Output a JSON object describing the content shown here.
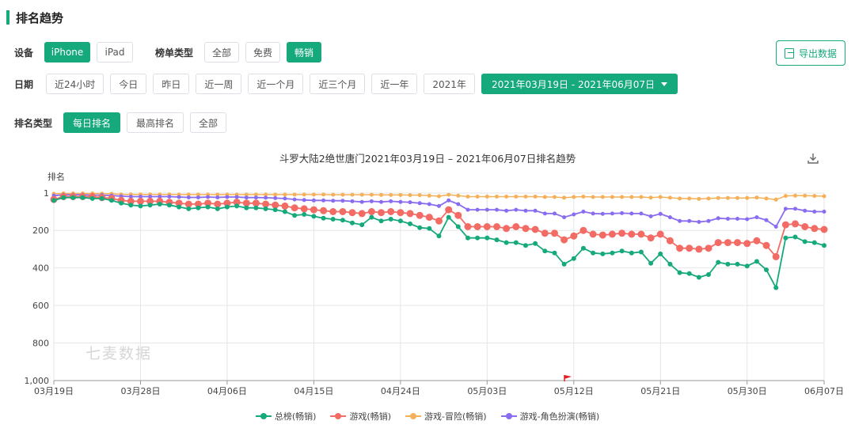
{
  "header": {
    "title": "排名趋势"
  },
  "filters": {
    "device": {
      "label": "设备",
      "options": [
        "iPhone",
        "iPad"
      ],
      "active": 0
    },
    "list_type": {
      "label": "榜单类型",
      "options": [
        "全部",
        "免费",
        "畅销"
      ],
      "active": 2
    },
    "date": {
      "label": "日期",
      "options": [
        "近24小时",
        "今日",
        "昨日",
        "近一周",
        "近一个月",
        "近三个月",
        "近一年",
        "2021年"
      ],
      "range": "2021年03月19日 - 2021年06月07日"
    },
    "rank_type": {
      "label": "排名类型",
      "options": [
        "每日排名",
        "最高排名",
        "全部"
      ],
      "active": 0
    }
  },
  "export_label": "导出数据",
  "watermark": "七麦数据",
  "colors": {
    "accent": "#16a97c",
    "overall": "#16a97c",
    "games": "#f26b64",
    "adventure": "#f5b05a",
    "rpg": "#8a6cf0"
  },
  "chart_data": {
    "type": "line",
    "title": "斗罗大陆2绝世唐门2021年03月19日 – 2021年06月07日排名趋势",
    "ylabel": "排名",
    "y_inverted": true,
    "ylim": [
      1,
      1000
    ],
    "y_ticks": [
      "1",
      "200",
      "400",
      "600",
      "800",
      "1,000"
    ],
    "y_tick_values": [
      1,
      200,
      400,
      600,
      800,
      1000
    ],
    "x_tick_labels": [
      "03月19日",
      "03月28日",
      "04月06日",
      "04月15日",
      "04月24日",
      "05月03日",
      "05月12日",
      "05月21日",
      "05月30日",
      "06月07日"
    ],
    "x_start": "2021-03-19",
    "x_end": "2021-06-07",
    "grid": true,
    "legend_position": "bottom",
    "series": [
      {
        "name": "总榜(畅销)",
        "color": "#16a97c",
        "values": [
          40,
          25,
          25,
          25,
          30,
          30,
          40,
          55,
          65,
          70,
          65,
          60,
          65,
          75,
          85,
          80,
          75,
          85,
          75,
          70,
          80,
          80,
          85,
          90,
          100,
          120,
          115,
          125,
          135,
          140,
          145,
          160,
          170,
          130,
          150,
          140,
          150,
          165,
          185,
          190,
          230,
          130,
          180,
          240,
          240,
          240,
          250,
          265,
          265,
          280,
          270,
          310,
          320,
          380,
          350,
          295,
          320,
          325,
          320,
          310,
          320,
          315,
          375,
          325,
          380,
          425,
          430,
          450,
          435,
          370,
          380,
          380,
          390,
          365,
          410,
          505,
          240,
          235,
          260,
          265,
          280
        ]
      },
      {
        "name": "游戏(畅销)",
        "color": "#f26b64",
        "values": [
          35,
          20,
          20,
          20,
          20,
          25,
          30,
          40,
          45,
          45,
          45,
          45,
          50,
          55,
          60,
          60,
          55,
          60,
          55,
          50,
          55,
          55,
          60,
          65,
          70,
          80,
          85,
          90,
          95,
          100,
          100,
          105,
          110,
          100,
          105,
          100,
          105,
          110,
          120,
          130,
          150,
          90,
          120,
          180,
          180,
          180,
          180,
          190,
          180,
          190,
          195,
          215,
          215,
          250,
          230,
          200,
          220,
          225,
          220,
          215,
          220,
          220,
          240,
          220,
          255,
          295,
          295,
          300,
          295,
          265,
          265,
          265,
          270,
          255,
          280,
          340,
          170,
          165,
          180,
          190,
          195
        ]
      },
      {
        "name": "游戏-冒险(畅销)",
        "color": "#f5b05a",
        "values": [
          5,
          3,
          3,
          3,
          3,
          4,
          5,
          8,
          8,
          8,
          8,
          8,
          8,
          9,
          9,
          9,
          9,
          9,
          9,
          9,
          9,
          9,
          9,
          9,
          9,
          9,
          9,
          9,
          9,
          10,
          10,
          10,
          10,
          10,
          11,
          11,
          11,
          12,
          12,
          15,
          18,
          10,
          15,
          20,
          20,
          20,
          20,
          20,
          20,
          20,
          20,
          22,
          22,
          26,
          22,
          20,
          22,
          22,
          22,
          22,
          22,
          22,
          25,
          22,
          26,
          30,
          30,
          32,
          30,
          27,
          27,
          27,
          27,
          25,
          30,
          36,
          16,
          15,
          15,
          16,
          18
        ]
      },
      {
        "name": "游戏-角色扮演(畅销)",
        "color": "#8a6cf0",
        "values": [
          15,
          10,
          10,
          10,
          12,
          12,
          14,
          18,
          20,
          20,
          20,
          20,
          20,
          22,
          24,
          24,
          22,
          24,
          22,
          22,
          25,
          25,
          26,
          28,
          30,
          35,
          38,
          40,
          40,
          42,
          42,
          45,
          48,
          45,
          48,
          45,
          48,
          50,
          55,
          60,
          70,
          40,
          60,
          90,
          90,
          90,
          90,
          95,
          90,
          95,
          95,
          110,
          110,
          130,
          115,
          100,
          110,
          112,
          110,
          108,
          110,
          110,
          125,
          112,
          130,
          150,
          150,
          155,
          150,
          135,
          138,
          138,
          140,
          130,
          145,
          180,
          85,
          85,
          95,
          100,
          100
        ]
      }
    ]
  }
}
